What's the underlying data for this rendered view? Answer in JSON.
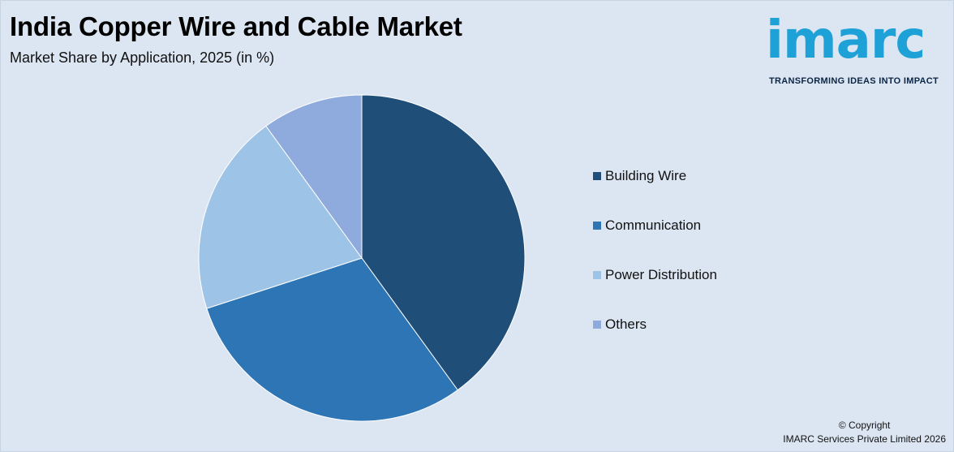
{
  "header": {
    "title": "India Copper Wire and Cable Market",
    "subtitle": "Market Share by Application, 2025 (in %)"
  },
  "logo": {
    "wordmark": "imarc",
    "tagline": "TRANSFORMING IDEAS INTO IMPACT",
    "color": "#1da1d6"
  },
  "footer": {
    "line1": "© Copyright",
    "line2": "IMARC Services Private Limited 2026"
  },
  "chart_data": {
    "type": "pie",
    "title": "India Copper Wire and Cable Market",
    "subtitle": "Market Share by Application, 2025 (in %)",
    "legend_position": "right",
    "categories": [
      "Building Wire",
      "Communication",
      "Power Distribution",
      "Others"
    ],
    "values": [
      40,
      30,
      20,
      10
    ],
    "colors": [
      "#1f4e79",
      "#2e75b6",
      "#9dc3e6",
      "#8faadc"
    ]
  }
}
